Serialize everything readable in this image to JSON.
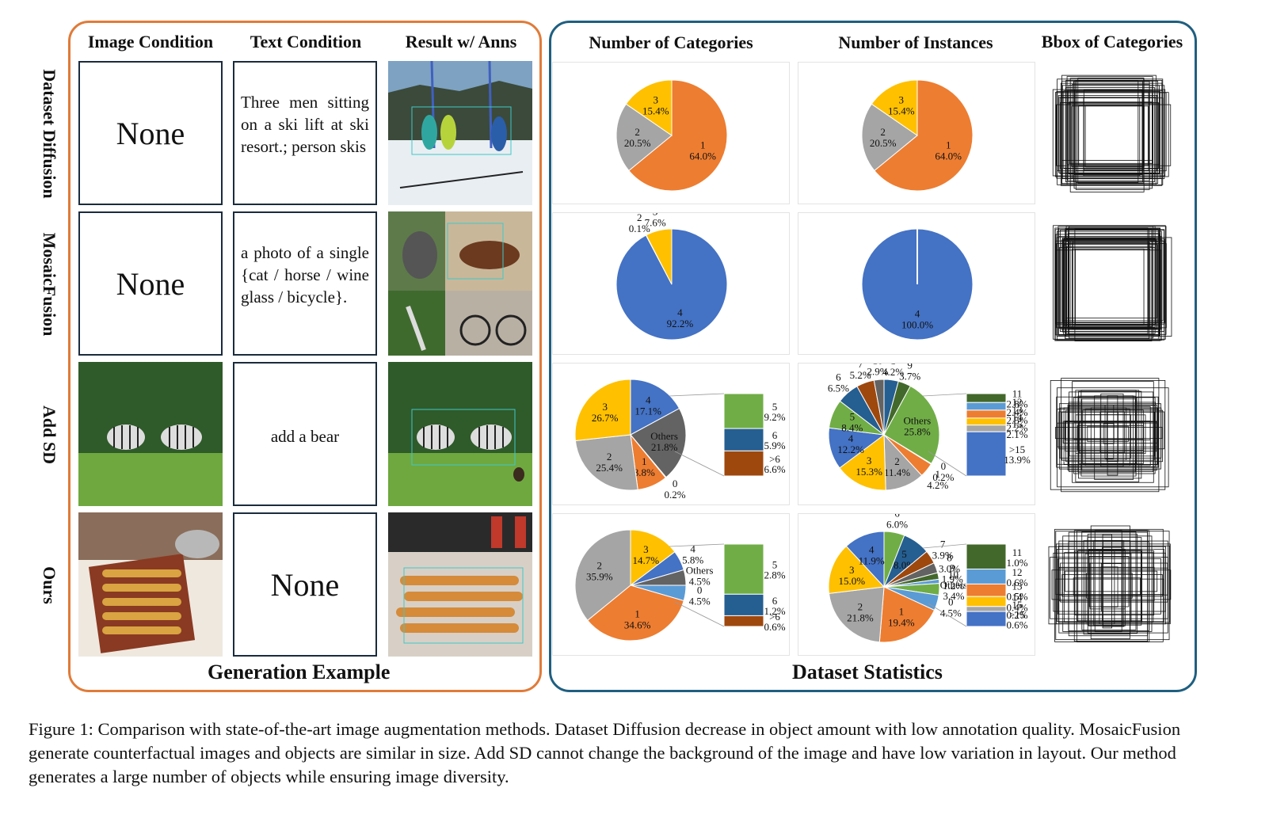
{
  "generation_example": {
    "title": "Generation Example",
    "column_headers": [
      "Image Condition",
      "Text Condition",
      "Result w/ Anns"
    ],
    "rows": [
      {
        "method": "Dataset Diffusion",
        "image_condition": "None",
        "text_condition": "Three men sitting on a ski lift at ski resort.; person skis"
      },
      {
        "method": "MosaicFusion",
        "image_condition": "None",
        "text_condition": "a photo of a single {cat / horse / wine glass / bicycle}."
      },
      {
        "method": "Add SD",
        "image_condition": "",
        "text_condition": "add a bear"
      },
      {
        "method": "Ours",
        "image_condition": "",
        "text_condition": "None"
      }
    ]
  },
  "dataset_statistics": {
    "title": "Dataset Statistics",
    "column_headers": [
      "Number of Categories",
      "Number of Instances",
      "Bbox of Categories"
    ]
  },
  "caption": "Figure 1: Comparison with state-of-the-art image augmentation methods. Dataset Diffusion decrease in object amount with low annotation quality. MosaicFusion generate counterfactual images and objects are similar in size. Add SD cannot change the background of the image and have low variation in layout. Our method generates a large number of objects while ensuring image diversity.",
  "colors": {
    "orange": "#ed7d31",
    "gray": "#a5a5a5",
    "yellow": "#ffc000",
    "blue": "#4472c4",
    "green": "#70ad47",
    "dark_blue": "#255e91",
    "dark_gray": "#636363",
    "brown": "#9e480e",
    "light_blue": "#5b9bd5",
    "olive": "#43682b"
  },
  "chart_data": [
    {
      "type": "pie",
      "name": "Dataset Diffusion - Number of Categories",
      "labels": [
        "1",
        "2",
        "3"
      ],
      "values": [
        64.0,
        20.5,
        15.4
      ],
      "value_labels": [
        "64.0%",
        "20.5%",
        "15.4%"
      ]
    },
    {
      "type": "pie",
      "name": "Dataset Diffusion - Number of Instances",
      "labels": [
        "1",
        "2",
        "3"
      ],
      "values": [
        64.0,
        20.5,
        15.4
      ],
      "value_labels": [
        "64.0%",
        "20.5%",
        "15.4%"
      ]
    },
    {
      "type": "pie",
      "name": "MosaicFusion - Number of Categories",
      "labels": [
        "4",
        "2",
        "3"
      ],
      "values": [
        92.2,
        0.1,
        7.6
      ],
      "value_labels": [
        "92.2%",
        "0.1%",
        "7.6%"
      ]
    },
    {
      "type": "pie",
      "name": "MosaicFusion - Number of Instances",
      "labels": [
        "4"
      ],
      "values": [
        100.0
      ],
      "value_labels": [
        "100.0%"
      ]
    },
    {
      "type": "pie",
      "name": "Add SD - Number of Categories",
      "labels": [
        "4",
        "Others",
        "0",
        "1",
        "2",
        "3"
      ],
      "values": [
        17.1,
        21.8,
        0.2,
        8.8,
        25.4,
        26.7
      ],
      "value_labels": [
        "17.1%",
        "21.8%",
        "0.2%",
        "8.8%",
        "25.4%",
        "26.7%"
      ],
      "others_breakdown": {
        "labels": [
          "5",
          "6",
          ">6"
        ],
        "values": [
          9.2,
          5.9,
          6.6
        ],
        "value_labels": [
          "9.2%",
          "5.9%",
          "6.6%"
        ]
      }
    },
    {
      "type": "pie",
      "name": "Add SD - Number of Instances",
      "labels": [
        "8",
        "9",
        "Others",
        "0",
        "1",
        "2",
        "3",
        "4",
        "5",
        "6",
        "7",
        "10"
      ],
      "values": [
        4.2,
        3.7,
        25.8,
        0.2,
        4.2,
        11.4,
        15.3,
        12.2,
        8.4,
        6.5,
        5.2,
        2.9
      ],
      "value_labels": [
        "4.2%",
        "3.7%",
        "25.8%",
        "0.2%",
        "4.2%",
        "11.4%",
        "15.3%",
        "12.2%",
        "8.4%",
        "6.5%",
        "5.2%",
        "2.9%"
      ],
      "others_breakdown": {
        "labels": [
          "11",
          "12",
          "13",
          "14",
          "15",
          ">15"
        ],
        "values": [
          2.8,
          2.4,
          2.5,
          2.2,
          2.1,
          13.9
        ],
        "value_labels": [
          "2.8%",
          "2.4%",
          "2.5%",
          "2.2%",
          "2.1%",
          "13.9%"
        ]
      }
    },
    {
      "type": "pie",
      "name": "Ours - Number of Categories",
      "labels": [
        "3",
        "4",
        "Others",
        "0",
        "1",
        "2"
      ],
      "values": [
        14.7,
        5.8,
        4.5,
        4.5,
        34.6,
        35.9
      ],
      "value_labels": [
        "14.7%",
        "5.8%",
        "4.5%",
        "4.5%",
        "34.6%",
        "35.9%"
      ],
      "others_breakdown": {
        "labels": [
          "5",
          "6",
          ">6"
        ],
        "values": [
          2.8,
          1.2,
          0.6
        ],
        "value_labels": [
          "2.8%",
          "1.2%",
          "0.6%"
        ]
      }
    },
    {
      "type": "pie",
      "name": "Ours - Number of Instances",
      "labels": [
        "6",
        "5",
        "7",
        "8",
        "9",
        "10",
        "Others",
        "0",
        "1",
        "2",
        "3",
        "4"
      ],
      "values": [
        6.0,
        8.0,
        3.9,
        3.0,
        1.9,
        1.2,
        3.4,
        4.5,
        19.4,
        21.8,
        15.0,
        11.9
      ],
      "value_labels": [
        "6.0%",
        "8.0%",
        "3.9%",
        "3.0%",
        "1.9%",
        "1.2%",
        "3.4%",
        "4.5%",
        "19.4%",
        "21.8%",
        "15.0%",
        "11.9%"
      ],
      "others_breakdown": {
        "labels": [
          "11",
          "12",
          "13",
          "14",
          "15",
          ">15"
        ],
        "values": [
          1.0,
          0.6,
          0.5,
          0.4,
          0.2,
          0.6
        ],
        "value_labels": [
          "1.0%",
          "0.6%",
          "0.5%",
          "0.4%",
          "0.2%",
          "0.6%"
        ]
      }
    }
  ]
}
